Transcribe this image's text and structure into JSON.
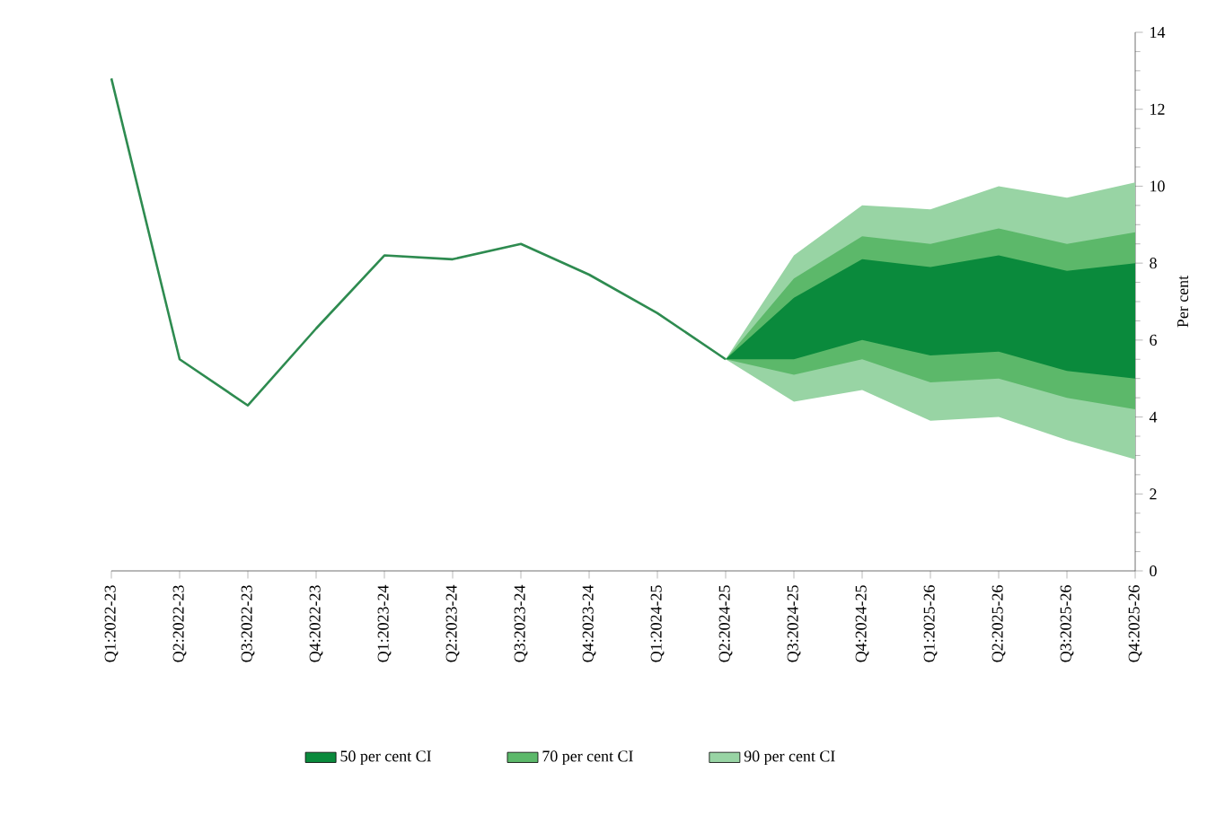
{
  "chart_data": {
    "type": "line",
    "ylabel": "Per cent",
    "categories": [
      "Q1:2022-23",
      "Q2:2022-23",
      "Q3:2022-23",
      "Q4:2022-23",
      "Q1:2023-24",
      "Q2:2023-24",
      "Q3:2023-24",
      "Q4:2023-24",
      "Q1:2024-25",
      "Q2:2024-25",
      "Q3:2024-25",
      "Q4:2024-25",
      "Q1:2025-26",
      "Q2:2025-26",
      "Q3:2025-26",
      "Q4:2025-26"
    ],
    "series": [
      {
        "color": "#2e8b50",
        "values": [
          12.8,
          5.5,
          4.3,
          6.3,
          8.2,
          8.1,
          8.5,
          7.7,
          6.7,
          5.5,
          null,
          null,
          null,
          null,
          null,
          null
        ]
      },
      {
        "type": "area",
        "name": "50 per cent CI",
        "color": "#0a8a3c",
        "values": [
          null,
          null,
          null,
          null,
          null,
          null,
          null,
          null,
          null,
          null,
          null,
          null,
          null,
          null,
          null,
          null
        ],
        "lower": [
          null,
          null,
          null,
          null,
          null,
          null,
          null,
          null,
          null,
          5.5,
          5.5,
          6.0,
          5.6,
          5.7,
          5.2,
          5.0
        ],
        "upper": [
          null,
          null,
          null,
          null,
          null,
          null,
          null,
          null,
          null,
          5.5,
          7.1,
          8.1,
          7.9,
          8.2,
          7.8,
          8.0
        ]
      },
      {
        "type": "area",
        "name": "70 per cent CI",
        "color": "#5cb86a",
        "values": [
          null,
          null,
          null,
          null,
          null,
          null,
          null,
          null,
          null,
          null,
          null,
          null,
          null,
          null,
          null,
          null
        ],
        "lower": [
          null,
          null,
          null,
          null,
          null,
          null,
          null,
          null,
          null,
          5.5,
          5.1,
          5.5,
          4.9,
          5.0,
          4.5,
          4.2
        ],
        "upper": [
          null,
          null,
          null,
          null,
          null,
          null,
          null,
          null,
          null,
          5.5,
          7.6,
          8.7,
          8.5,
          8.9,
          8.5,
          8.8
        ]
      },
      {
        "type": "area",
        "name": "90 per cent CI",
        "color": "#98d4a4",
        "values": [
          null,
          null,
          null,
          null,
          null,
          null,
          null,
          null,
          null,
          null,
          null,
          null,
          null,
          null,
          null,
          null
        ],
        "lower": [
          null,
          null,
          null,
          null,
          null,
          null,
          null,
          null,
          null,
          5.5,
          4.4,
          4.7,
          3.9,
          4.0,
          3.4,
          2.9
        ],
        "upper": [
          null,
          null,
          null,
          null,
          null,
          null,
          null,
          null,
          null,
          5.5,
          8.2,
          9.5,
          9.4,
          10.0,
          9.7,
          10.1
        ]
      }
    ],
    "ylim": [
      0,
      14
    ],
    "yticks": [
      0,
      2,
      4,
      6,
      8,
      10,
      12,
      14
    ],
    "legend": "bottom",
    "grid": false
  }
}
